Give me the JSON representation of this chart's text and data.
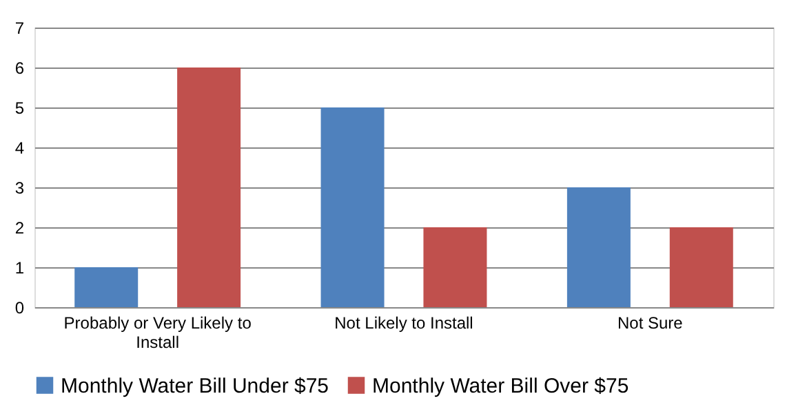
{
  "chart_data": {
    "type": "bar",
    "categories": [
      "Probably or Very Likely to Install",
      "Not Likely to Install",
      "Not Sure"
    ],
    "series": [
      {
        "name": "Monthly Water Bill Under $75",
        "color": "#4f81bd",
        "values": [
          1,
          5,
          3
        ]
      },
      {
        "name": "Monthly Water Bill Over $75",
        "color": "#c0504d",
        "values": [
          6,
          2,
          2
        ]
      }
    ],
    "ylim": [
      0,
      7
    ],
    "yticks": [
      0,
      1,
      2,
      3,
      4,
      5,
      6,
      7
    ],
    "grid": "y",
    "legend": "bottom"
  }
}
